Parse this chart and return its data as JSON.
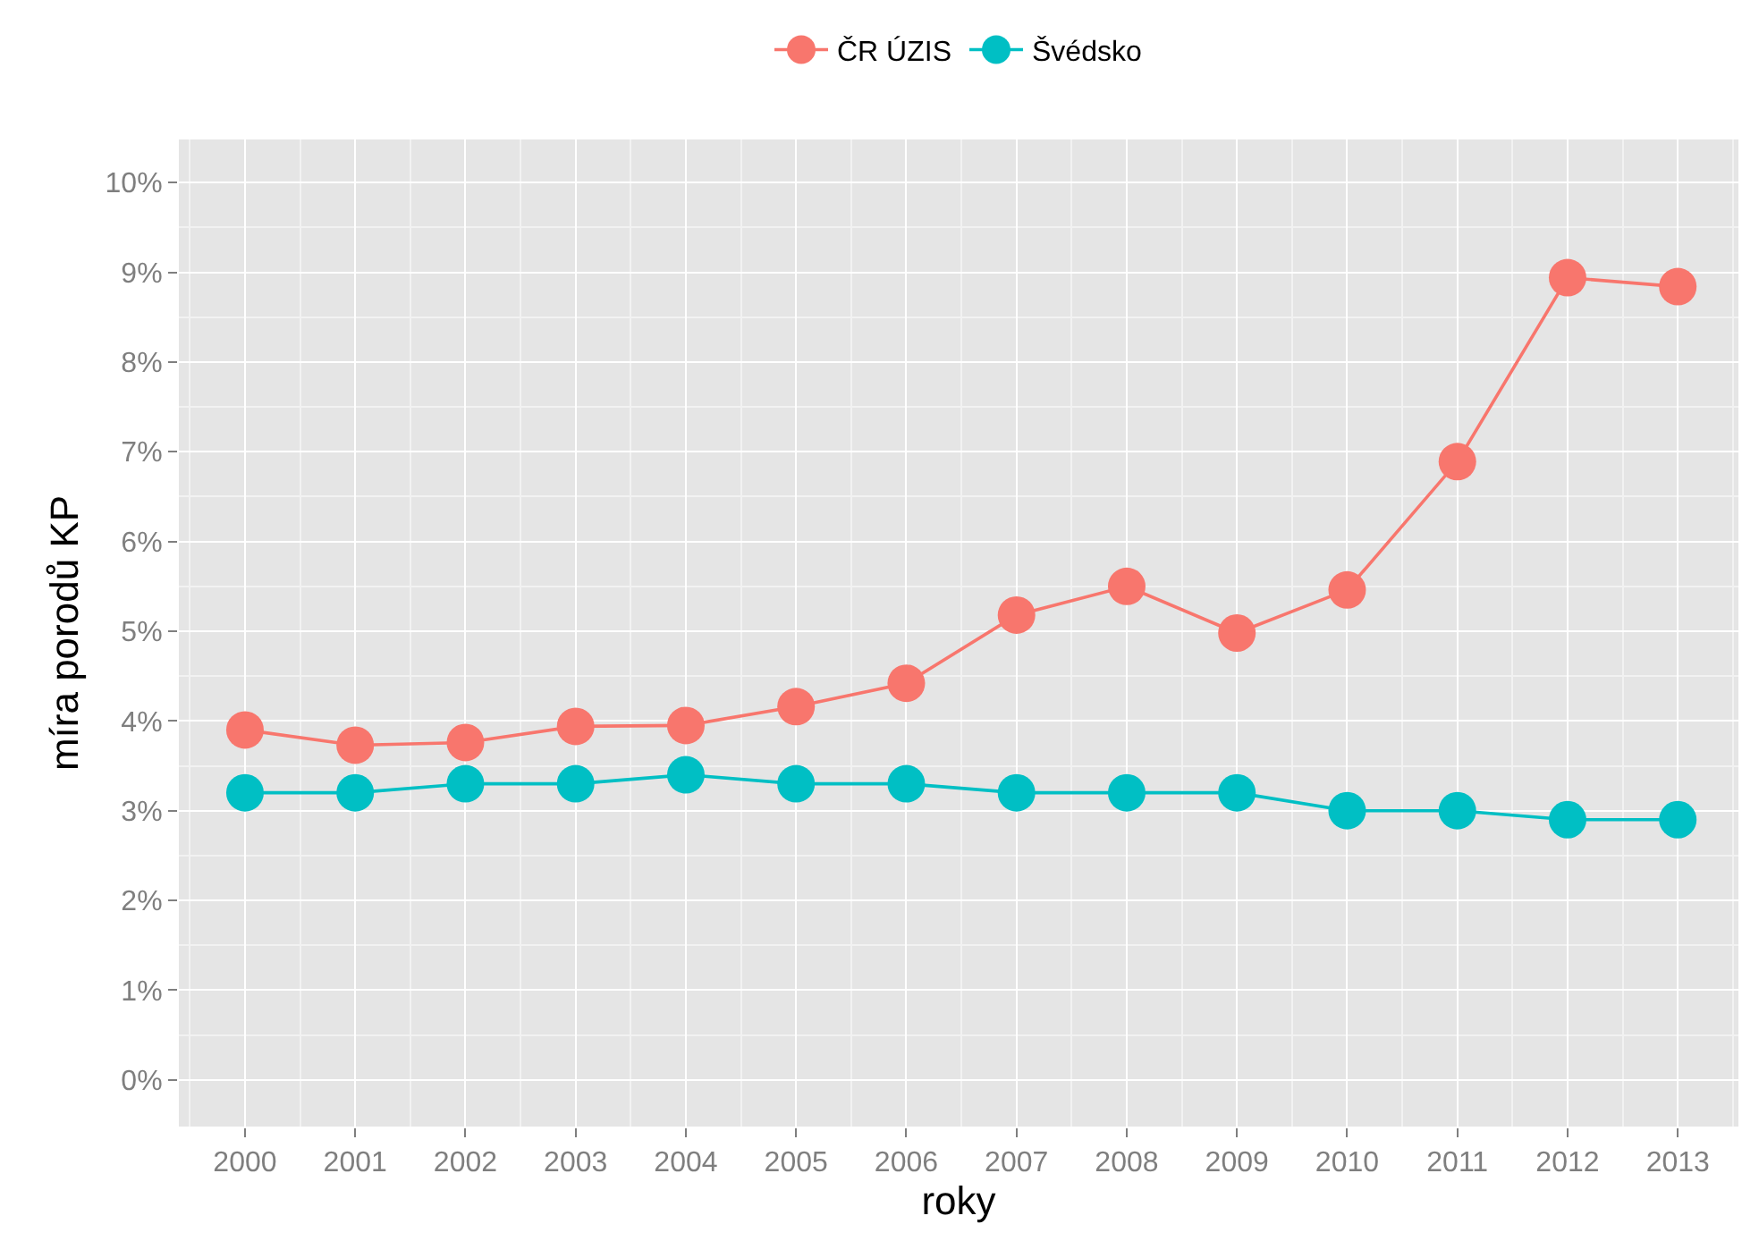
{
  "chart_data": {
    "type": "line",
    "xlabel": "roky",
    "ylabel": "míra porodů KP",
    "x": [
      2000,
      2001,
      2002,
      2003,
      2004,
      2005,
      2006,
      2007,
      2008,
      2009,
      2010,
      2011,
      2012,
      2013
    ],
    "series": [
      {
        "name": "ČR ÚZIS",
        "color": "#f8766d",
        "values": [
          3.9,
          3.73,
          3.76,
          3.94,
          3.95,
          4.16,
          4.42,
          5.18,
          5.5,
          4.98,
          5.46,
          6.89,
          8.94,
          8.84
        ]
      },
      {
        "name": "Švédsko",
        "color": "#00bfc4",
        "values": [
          3.2,
          3.2,
          3.3,
          3.3,
          3.4,
          3.3,
          3.3,
          3.2,
          3.2,
          3.2,
          3.0,
          3.0,
          2.9,
          2.9
        ]
      }
    ],
    "xlim": [
      1999.4,
      2013.55
    ],
    "xticks": [
      2000,
      2001,
      2002,
      2003,
      2004,
      2005,
      2006,
      2007,
      2008,
      2009,
      2010,
      2011,
      2012,
      2013
    ],
    "ylim": [
      -0.52,
      10.48
    ],
    "yticks": [
      {
        "value": 0,
        "label": "0%"
      },
      {
        "value": 1,
        "label": "1%"
      },
      {
        "value": 2,
        "label": "2%"
      },
      {
        "value": 3,
        "label": "3%"
      },
      {
        "value": 4,
        "label": "4%"
      },
      {
        "value": 5,
        "label": "5%"
      },
      {
        "value": 6,
        "label": "6%"
      },
      {
        "value": 7,
        "label": "7%"
      },
      {
        "value": 8,
        "label": "8%"
      },
      {
        "value": 9,
        "label": "9%"
      },
      {
        "value": 10,
        "label": "10%"
      }
    ],
    "grid": true,
    "legend": "top",
    "marker": "circle",
    "line_style": "solid"
  }
}
